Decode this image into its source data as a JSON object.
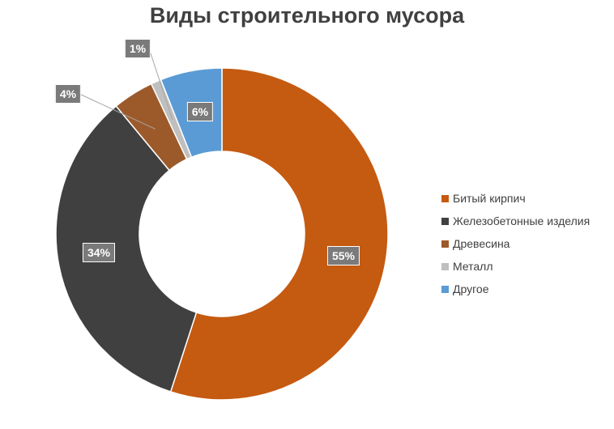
{
  "chart_data": {
    "type": "pie",
    "donut": true,
    "title": "Виды строительного мусора",
    "categories": [
      "Битый кирпич",
      "Железобетонные изделия",
      "Древесина",
      "Металл",
      "Другое"
    ],
    "values": [
      55,
      34,
      4,
      1,
      6
    ],
    "labels": [
      "55%",
      "34%",
      "4%",
      "1%",
      "6%"
    ],
    "colors": [
      "#c55a11",
      "#404040",
      "#9c5a2a",
      "#bfbfbf",
      "#5b9bd5"
    ],
    "legend_position": "right"
  }
}
